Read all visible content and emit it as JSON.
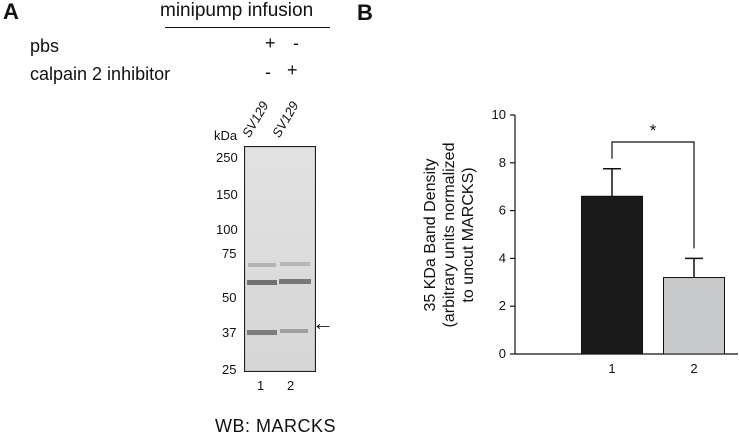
{
  "panel_a": {
    "letter": "A",
    "header": "minipump infusion",
    "conditions": [
      {
        "label": "pbs",
        "lane1": "+",
        "lane2": "-"
      },
      {
        "label": "calpain 2 inhibitor",
        "lane1": "-",
        "lane2": "+"
      }
    ],
    "kda_label": "kDa",
    "markers": [
      "250",
      "150",
      "100",
      "75",
      "50",
      "37",
      "25"
    ],
    "lane_labels": [
      "SV129",
      "SV129"
    ],
    "lane_numbers": [
      "1",
      "2"
    ],
    "arrow": "←",
    "footer": "WB:  MARCKS"
  },
  "panel_b": {
    "letter": "B",
    "significance": "*"
  },
  "chart_data": {
    "type": "bar",
    "categories": [
      "1",
      "2"
    ],
    "values": [
      6.6,
      3.2
    ],
    "errors": [
      1.15,
      0.8
    ],
    "bar_colors": [
      "#1a1a1a",
      "#c8c9cb"
    ],
    "ylabel_lines": [
      "35 KDa Band Density",
      "(arbitrary units normalized",
      "to uncut MARCKS)"
    ],
    "yticks": [
      "0",
      "2",
      "4",
      "6",
      "8",
      "10"
    ],
    "ylim": [
      0,
      10
    ],
    "grid": false,
    "significance_bracket": {
      "between": [
        "1",
        "2"
      ],
      "label": "*"
    }
  }
}
